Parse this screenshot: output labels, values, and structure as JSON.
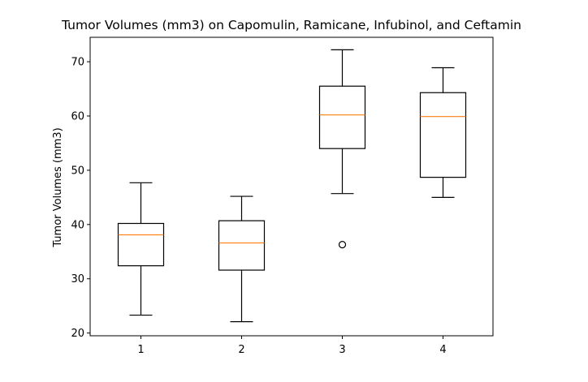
{
  "chart_data": {
    "type": "box",
    "title": "Tumor Volumes (mm3) on Capomulin, Ramicane, Infubinol, and Ceftamin",
    "xlabel": "",
    "ylabel": "Tumor Volumes (mm3)",
    "categories": [
      "1",
      "2",
      "3",
      "4"
    ],
    "ylim": [
      19.5,
      74.5
    ],
    "yticks": [
      20,
      30,
      40,
      50,
      60,
      70
    ],
    "ytick_labels": [
      "20",
      "30",
      "40",
      "50",
      "60",
      "70"
    ],
    "boxes": [
      {
        "whisker_low": 23.3,
        "q1": 32.4,
        "median": 38.1,
        "q3": 40.2,
        "whisker_high": 47.7,
        "outliers": []
      },
      {
        "whisker_low": 22.1,
        "q1": 31.6,
        "median": 36.6,
        "q3": 40.7,
        "whisker_high": 45.2,
        "outliers": []
      },
      {
        "whisker_low": 45.7,
        "q1": 54.0,
        "median": 60.2,
        "q3": 65.5,
        "whisker_high": 72.2,
        "outliers": [
          36.3
        ]
      },
      {
        "whisker_low": 45.0,
        "q1": 48.7,
        "median": 59.9,
        "q3": 64.3,
        "whisker_high": 68.9,
        "outliers": []
      }
    ],
    "colors": {
      "box": "#000000",
      "median": "#ff7f0e"
    },
    "grid": false,
    "legend": "none"
  }
}
